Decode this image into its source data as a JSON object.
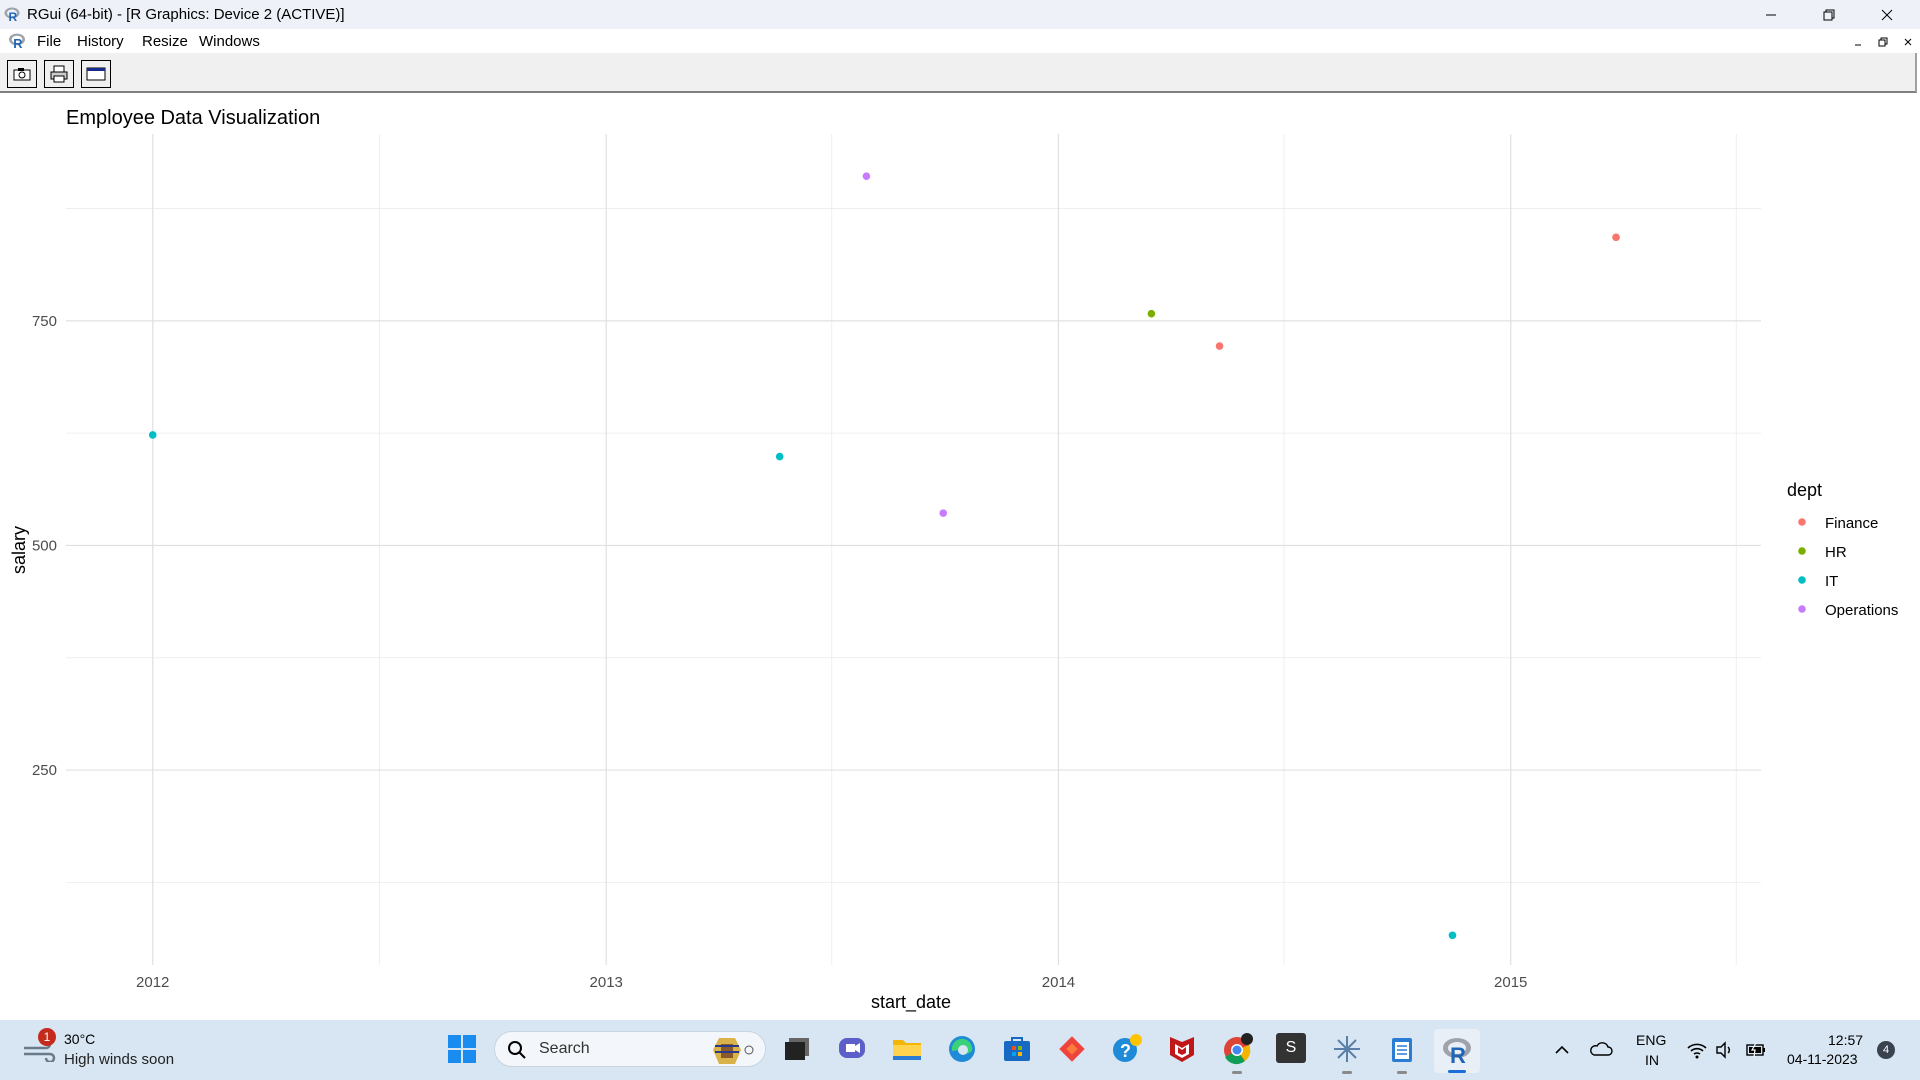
{
  "window": {
    "title": "RGui (64-bit) - [R Graphics: Device 2 (ACTIVE)]",
    "menu": [
      "File",
      "History",
      "Resize",
      "Windows"
    ]
  },
  "colors": {
    "Finance": "#F8766D",
    "HR": "#7CAE00",
    "IT": "#00BFC4",
    "Operations": "#C77CFF",
    "titlebar": "#eef2f8",
    "taskbar": "#d7e6f2"
  },
  "chart_data": {
    "type": "scatter",
    "title": "Employee Data Visualization",
    "xlabel": "start_date",
    "ylabel": "salary",
    "x_ticks": [
      "2012",
      "2013",
      "2014",
      "2015"
    ],
    "y_ticks": [
      "250",
      "500",
      "750"
    ],
    "xlim": [
      "2011-10-23",
      "2015-07-22"
    ],
    "ylim": [
      33,
      958
    ],
    "grid": true,
    "legend": {
      "title": "dept",
      "position": "right",
      "entries": [
        "Finance",
        "HR",
        "IT",
        "Operations"
      ]
    },
    "series": [
      {
        "name": "Finance",
        "points": [
          {
            "x": "2015-03-27",
            "y": 843
          },
          {
            "x": "2014-05-11",
            "y": 722
          }
        ]
      },
      {
        "name": "HR",
        "points": [
          {
            "x": "2014-03-17",
            "y": 758
          }
        ]
      },
      {
        "name": "IT",
        "points": [
          {
            "x": "2012-01-01",
            "y": 623
          },
          {
            "x": "2013-05-21",
            "y": 599
          },
          {
            "x": "2014-11-15",
            "y": 66
          }
        ]
      },
      {
        "name": "Operations",
        "points": [
          {
            "x": "2013-07-30",
            "y": 911
          },
          {
            "x": "2013-09-30",
            "y": 536
          }
        ]
      }
    ]
  },
  "taskbar": {
    "weather_badge": "1",
    "temperature": "30°C",
    "weather_text": "High winds soon",
    "search_placeholder": "Search",
    "language": "ENG",
    "region": "IN",
    "time": "12:57",
    "date": "04-11-2023",
    "notification_count": "4",
    "store_letter": "S"
  }
}
